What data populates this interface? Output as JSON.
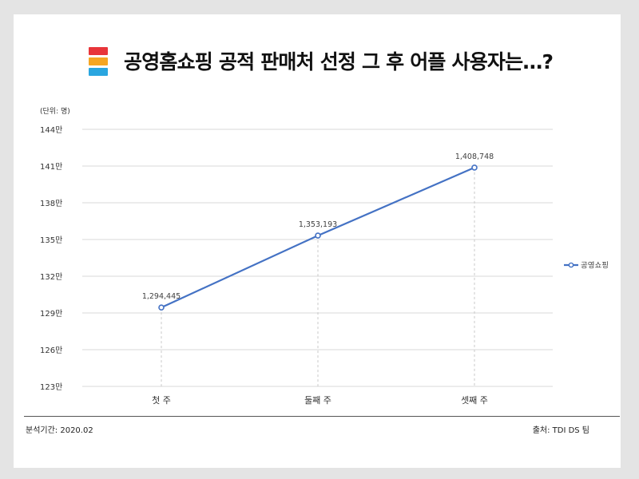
{
  "title": "공영홈쇼핑 공적 판매처 선정 그 후 어플 사용자는…?",
  "logo_colors": [
    "#e8353a",
    "#f5a623",
    "#2aa6e0"
  ],
  "unit_label": "(단위: 명)",
  "footer": {
    "period": "분석기간: 2020.02",
    "source": "출처: TDI DS 팀"
  },
  "chart_data": {
    "type": "line",
    "title": "",
    "xlabel": "",
    "ylabel": "",
    "categories": [
      "첫 주",
      "둘째 주",
      "셋째 주"
    ],
    "series": [
      {
        "name": "공영쇼핑",
        "values": [
          1294445,
          1353193,
          1408748
        ],
        "labels": [
          "1,294,445",
          "1,353,193",
          "1,408,748"
        ],
        "color": "#4472c4"
      }
    ],
    "ylim": [
      1230000,
      1440000
    ],
    "yticks": [
      {
        "value": 1440000,
        "label": "144만"
      },
      {
        "value": 1410000,
        "label": "141만"
      },
      {
        "value": 1380000,
        "label": "138만"
      },
      {
        "value": 1350000,
        "label": "135만"
      },
      {
        "value": 1320000,
        "label": "132만"
      },
      {
        "value": 1290000,
        "label": "129만"
      },
      {
        "value": 1260000,
        "label": "126만"
      },
      {
        "value": 1230000,
        "label": "123만"
      }
    ],
    "grid": true,
    "legend_position": "right"
  }
}
